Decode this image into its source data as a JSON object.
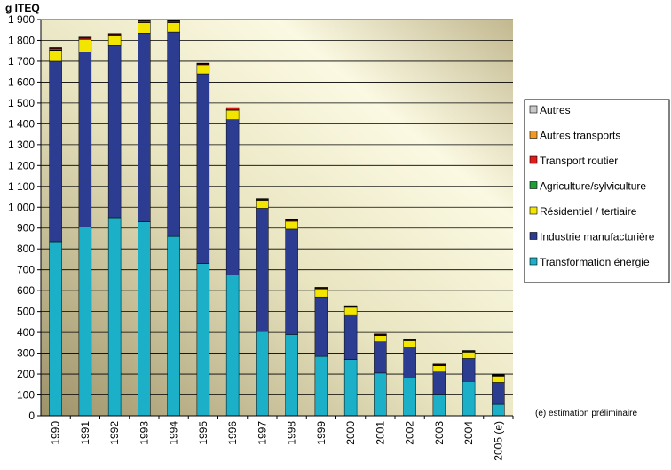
{
  "chart_data": {
    "type": "bar",
    "stacked": true,
    "title": "",
    "ylabel": "g ITEQ",
    "xlabel": "",
    "ylim": [
      0,
      1900
    ],
    "ytick_step": 100,
    "ytick_labels": [
      "0",
      "100",
      "200",
      "300",
      "400",
      "500",
      "600",
      "700",
      "800",
      "900",
      "1 000",
      "1 100",
      "1 200",
      "1 300",
      "1 400",
      "1 500",
      "1 600",
      "1 700",
      "1 800",
      "1 900"
    ],
    "grid": true,
    "legend_position": "right",
    "categories": [
      "1990",
      "1991",
      "1992",
      "1993",
      "1994",
      "1995",
      "1996",
      "1997",
      "1998",
      "1999",
      "2000",
      "2001",
      "2002",
      "2003",
      "2004",
      "2005 (e)"
    ],
    "series": [
      {
        "name": "Transformation énergie",
        "color": "#1BB0C8",
        "values": [
          835,
          905,
          950,
          930,
          860,
          730,
          675,
          405,
          390,
          285,
          270,
          205,
          180,
          100,
          165,
          55
        ]
      },
      {
        "name": "Industrie manufacturière",
        "color": "#2C3C90",
        "values": [
          865,
          840,
          825,
          905,
          980,
          910,
          745,
          590,
          505,
          285,
          215,
          150,
          150,
          110,
          110,
          105
        ]
      },
      {
        "name": "Résidentiel / tertiaire",
        "color": "#F2E600",
        "values": [
          52,
          60,
          48,
          50,
          45,
          43,
          45,
          38,
          38,
          38,
          35,
          30,
          30,
          30,
          30,
          30
        ]
      },
      {
        "name": "Agriculture/sylviculture",
        "color": "#1E9E3A",
        "values": [
          2,
          2,
          2,
          2,
          2,
          2,
          2,
          2,
          2,
          2,
          2,
          2,
          2,
          2,
          2,
          2
        ]
      },
      {
        "name": "Transport routier",
        "color": "#E11B1B",
        "values": [
          8,
          6,
          5,
          6,
          5,
          3,
          8,
          3,
          3,
          3,
          3,
          3,
          3,
          3,
          3,
          2
        ]
      },
      {
        "name": "Autres transports",
        "color": "#F39A1E",
        "values": [
          2,
          2,
          2,
          2,
          2,
          2,
          2,
          2,
          2,
          2,
          2,
          2,
          2,
          2,
          2,
          2
        ]
      },
      {
        "name": "Autres",
        "color": "#C8C8C8",
        "values": [
          2,
          1,
          1,
          1,
          1,
          1,
          1,
          1,
          1,
          1,
          1,
          1,
          1,
          1,
          1,
          1
        ]
      }
    ],
    "annotation": "(e) estimation préliminaire"
  }
}
